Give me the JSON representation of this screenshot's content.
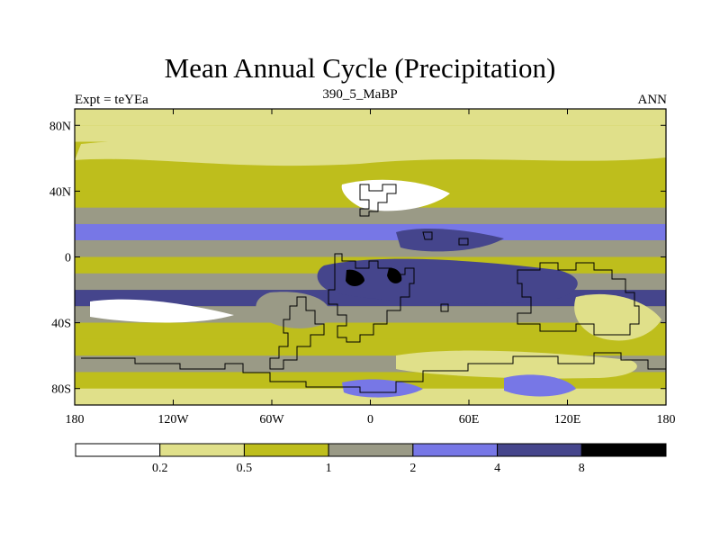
{
  "chart_data": {
    "type": "heatmap",
    "title": "Mean Annual Cycle (Precipitation)",
    "subtitle_left": "Expt = teYEa",
    "subtitle_center": "390_5_MaBP",
    "subtitle_right": "ANN",
    "x_ticks": [
      "180",
      "120W",
      "60W",
      "0",
      "60E",
      "120E",
      "180"
    ],
    "y_ticks": [
      "80N",
      "40N",
      "0",
      "40S",
      "80S"
    ],
    "x_range": [
      -180,
      180
    ],
    "y_range": [
      -90,
      90
    ],
    "colorbar": {
      "levels": [
        "0.2",
        "0.5",
        "1",
        "2",
        "4",
        "8"
      ],
      "colors": [
        "#ffffff",
        "#e0e08a",
        "#bebe1c",
        "#9a9a86",
        "#7777e6",
        "#45458c",
        "#000000"
      ]
    },
    "lat_band_classes": {
      "lat": [
        90,
        80,
        70,
        60,
        50,
        40,
        30,
        20,
        10,
        0,
        -10,
        -20,
        -30,
        -40,
        -50,
        -60,
        -70,
        -80,
        -90
      ],
      "class": [
        1,
        1,
        2,
        2,
        2,
        2,
        3,
        4,
        3,
        2,
        3,
        5,
        3,
        2,
        2,
        3,
        2,
        1,
        1
      ]
    }
  }
}
